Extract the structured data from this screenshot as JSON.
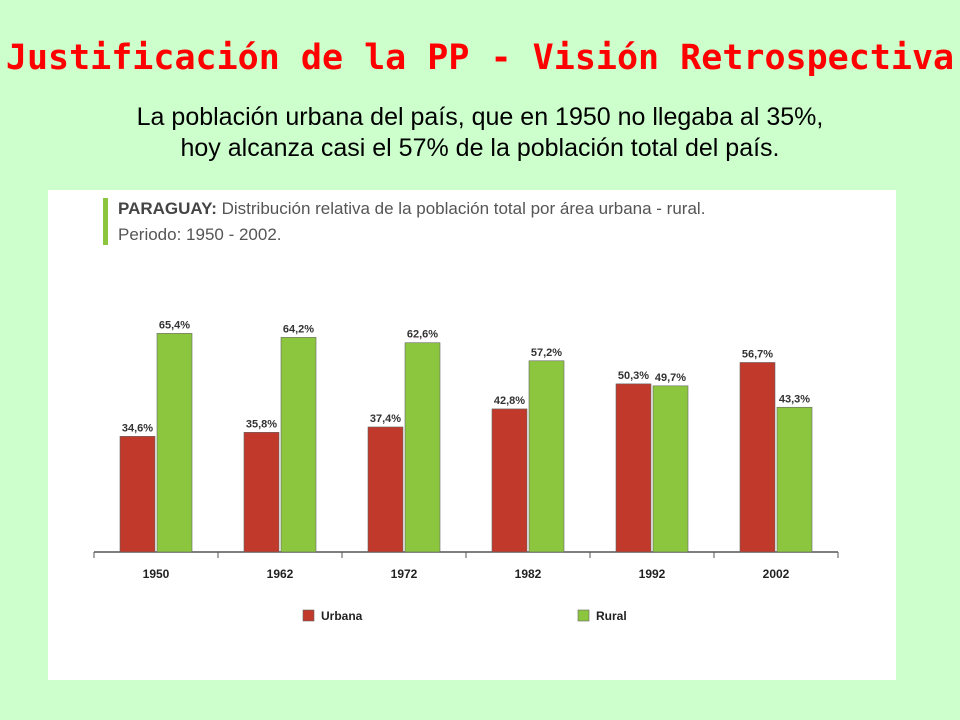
{
  "slide": {
    "title": "Justificación de la PP - Visión Retrospectiva",
    "subtitle_line1": "La población urbana del país, que en 1950 no llegaba al 35%,",
    "subtitle_line2": "hoy alcanza casi el 57% de la población total del país."
  },
  "chart_header": {
    "line1_bold": "PARAGUAY:",
    "line1_rest": " Distribución relativa de la población total por área urbana - rural.",
    "line2": "Periodo: 1950 - 2002."
  },
  "colors": {
    "background": "#ccffcc",
    "title": "#ff0000",
    "urbana": "#c0392b",
    "rural": "#8cc63f",
    "header_accent": "#8cc63f"
  },
  "chart_data": {
    "type": "bar",
    "categories": [
      "1950",
      "1962",
      "1972",
      "1982",
      "1992",
      "2002"
    ],
    "series": [
      {
        "name": "Urbana",
        "values": [
          34.6,
          35.8,
          37.4,
          42.8,
          50.3,
          56.7
        ],
        "labels": [
          "34,6%",
          "35,8%",
          "37,4%",
          "42,8%",
          "50,3%",
          "56,7%"
        ]
      },
      {
        "name": "Rural",
        "values": [
          65.4,
          64.2,
          62.6,
          57.2,
          49.7,
          43.3
        ],
        "labels": [
          "65,4%",
          "64,2%",
          "62,6%",
          "57,2%",
          "49,7%",
          "43,3%"
        ]
      }
    ],
    "ylim": [
      0,
      70
    ],
    "grid": false,
    "legend_position": "bottom"
  }
}
